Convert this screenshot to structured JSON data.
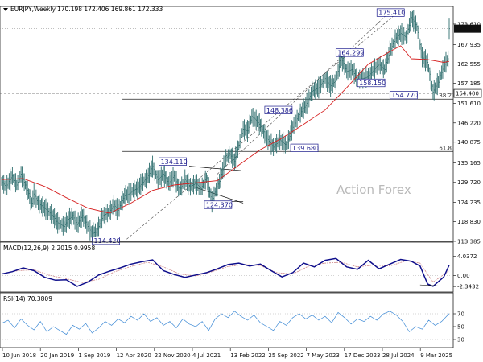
{
  "chart_data": [
    {
      "type": "candlestick",
      "header": {
        "symbol": "EURJPY,Weekly",
        "ohlc": "170.198 172.406 169.861 172.333"
      },
      "ylim": [
        113.385,
        178.5
      ],
      "y_ticks": [
        "173.610",
        "167.935",
        "162.555",
        "157.185",
        "151.610",
        "146.220",
        "140.875",
        "135.165",
        "129.720",
        "124.235",
        "118.830",
        "113.385"
      ],
      "x_ticks": [
        "10 Jun 2018",
        "20 Jan 2019",
        "1 Sep 2019",
        "12 Apr 2020",
        "22 Nov 2020",
        "4 Jul 2021",
        "13 Feb 2022",
        "25 Sep 2022",
        "7 May 2023",
        "17 Dec 2023",
        "28 Jul 2024",
        "9 Mar 2025"
      ],
      "current_price": {
        "value": 172.333,
        "label": "172.333"
      },
      "price_line": {
        "value": 154.4,
        "label": "154.400"
      },
      "price_series": {
        "time": [
          0,
          4,
          10,
          14,
          18,
          24,
          28,
          30,
          34,
          40,
          46,
          52,
          58,
          62,
          66,
          70,
          75,
          80,
          84,
          88,
          94,
          100,
          104,
          108,
          114,
          118,
          122,
          126,
          130,
          135,
          140,
          145,
          150,
          155,
          160,
          165,
          170,
          175,
          180,
          185,
          190,
          195,
          198,
          202,
          205,
          208,
          212,
          216,
          220,
          224,
          228,
          232,
          236,
          240,
          246,
          252,
          258,
          264,
          270,
          276,
          282,
          288,
          294,
          300,
          305,
          310,
          315,
          320,
          325,
          330,
          335,
          340,
          345,
          350,
          355,
          360,
          365,
          370,
          375,
          380,
          385,
          390,
          395,
          400,
          405,
          410,
          415
        ],
        "price": [
          130.0,
          128.5,
          131.5,
          129.0,
          132.0,
          127.5,
          124.0,
          126.5,
          124.0,
          122.5,
          121.0,
          118.5,
          117.5,
          119.5,
          120.5,
          118.0,
          120.5,
          117.5,
          115.5,
          116.0,
          120.5,
          121.5,
          123.5,
          122.0,
          126.0,
          126.5,
          127.5,
          128.0,
          129.5,
          131.0,
          134.1,
          130.5,
          132.0,
          129.5,
          131.5,
          127.5,
          130.5,
          128.5,
          129.5,
          128.0,
          131.0,
          124.4,
          127.0,
          130.0,
          133.0,
          136.5,
          137.5,
          135.5,
          140.0,
          144.5,
          144.0,
          148.0,
          147.0,
          145.5,
          142.0,
          139.5,
          141.5,
          140.0,
          145.0,
          148.5,
          151.0,
          155.0,
          156.0,
          158.5,
          156.5,
          158.0,
          164.3,
          160.5,
          161.0,
          158.2,
          158.5,
          159.0,
          161.0,
          162.5,
          161.0,
          166.0,
          169.5,
          171.0,
          170.0,
          175.41,
          173.0,
          164.5,
          163.0,
          154.77,
          157.5,
          162.0,
          164.5,
          163.0,
          165.5,
          162.0,
          163.0,
          164.0,
          161.5,
          160.5,
          163.0,
          166.0,
          172.333
        ]
      },
      "ma_series": {
        "time": [
          0,
          20,
          40,
          60,
          80,
          100,
          120,
          140,
          160,
          180,
          200,
          220,
          240,
          260,
          280,
          300,
          320,
          340,
          360,
          370,
          380,
          395,
          410,
          415
        ],
        "value": [
          130.5,
          130.8,
          128.6,
          125.5,
          122.6,
          121.2,
          124.0,
          127.5,
          129.0,
          129.6,
          130.2,
          134.5,
          138.8,
          142.0,
          145.8,
          149.8,
          156.0,
          162.5,
          166.0,
          167.6,
          164.0,
          163.8,
          163.0,
          163.3
        ]
      },
      "horizontal_levels": [
        {
          "value": 152.8,
          "label": "38.2"
        },
        {
          "value": 138.3,
          "label": "61.8"
        }
      ],
      "price_labels": [
        {
          "text": "175.410",
          "value": 175.41
        },
        {
          "text": "164.299",
          "value": 164.3
        },
        {
          "text": "158.150",
          "value": 158.15
        },
        {
          "text": "154.770",
          "value": 154.77
        },
        {
          "text": "148.386",
          "value": 148.386
        },
        {
          "text": "139.680",
          "value": 139.68
        },
        {
          "text": "134.110",
          "value": 134.11
        },
        {
          "text": "124.370",
          "value": 124.37
        },
        {
          "text": "114.420",
          "value": 114.42
        }
      ],
      "watermark": "Action Forex"
    },
    {
      "type": "line",
      "title": "MACD(12,26,9) 2.2015 0.9958",
      "ylim": [
        -3.0,
        4.5
      ],
      "y_ticks": [
        "4.0372",
        "0.00",
        "-2.3432"
      ],
      "series": [
        {
          "name": "MACD",
          "color": "#0f0f8c",
          "time": [
            0,
            10,
            20,
            30,
            40,
            50,
            60,
            70,
            80,
            90,
            100,
            110,
            120,
            130,
            140,
            150,
            160,
            170,
            180,
            190,
            200,
            210,
            220,
            230,
            240,
            250,
            260,
            270,
            280,
            290,
            300,
            310,
            320,
            330,
            340,
            350,
            360,
            370,
            380,
            388,
            395,
            400,
            410,
            415
          ],
          "value": [
            0.3,
            0.8,
            1.6,
            1.0,
            -0.4,
            -1.0,
            -0.9,
            -2.3,
            -1.4,
            0.1,
            0.9,
            1.6,
            2.4,
            2.9,
            3.3,
            1.0,
            0.2,
            -0.4,
            0.1,
            0.6,
            1.4,
            2.3,
            2.6,
            2.0,
            2.4,
            1.0,
            -0.3,
            0.6,
            2.6,
            1.8,
            3.2,
            3.6,
            1.8,
            1.3,
            3.2,
            1.4,
            2.4,
            3.4,
            3.0,
            2.0,
            -1.8,
            -2.3,
            -0.3,
            2.2
          ]
        },
        {
          "name": "Signal",
          "color": "#cf8a8a",
          "time": [
            0,
            15,
            30,
            45,
            60,
            75,
            90,
            105,
            120,
            135,
            150,
            165,
            180,
            195,
            210,
            225,
            240,
            255,
            270,
            285,
            300,
            315,
            330,
            345,
            360,
            375,
            388,
            400,
            415
          ],
          "value": [
            0.3,
            1.0,
            1.2,
            0.0,
            -0.7,
            -1.5,
            -0.8,
            0.8,
            1.9,
            2.8,
            1.8,
            0.3,
            -0.1,
            0.8,
            1.9,
            2.3,
            2.1,
            0.6,
            0.3,
            2.0,
            2.6,
            2.8,
            1.8,
            2.2,
            2.0,
            3.1,
            2.6,
            -1.4,
            1.0
          ]
        }
      ]
    },
    {
      "type": "line",
      "title": "RSI(14) 70.3809",
      "ylim": [
        20,
        85
      ],
      "y_ticks": [
        "70",
        "50",
        "30"
      ],
      "series": [
        {
          "name": "RSI",
          "color": "#3f8bd6",
          "time": [
            0,
            6,
            12,
            18,
            24,
            30,
            36,
            42,
            48,
            54,
            60,
            66,
            72,
            78,
            84,
            90,
            96,
            102,
            108,
            114,
            120,
            126,
            132,
            138,
            144,
            150,
            156,
            162,
            168,
            174,
            180,
            186,
            192,
            198,
            204,
            210,
            216,
            222,
            228,
            234,
            240,
            246,
            252,
            258,
            264,
            270,
            276,
            282,
            288,
            294,
            300,
            306,
            312,
            318,
            324,
            330,
            336,
            342,
            348,
            354,
            360,
            366,
            372,
            378,
            384,
            390,
            396,
            402,
            408,
            415
          ],
          "value": [
            55,
            60,
            48,
            62,
            52,
            45,
            58,
            42,
            50,
            44,
            38,
            52,
            46,
            55,
            40,
            48,
            58,
            52,
            62,
            56,
            66,
            60,
            70,
            58,
            64,
            52,
            58,
            48,
            62,
            54,
            50,
            58,
            44,
            62,
            70,
            64,
            74,
            66,
            60,
            68,
            56,
            50,
            44,
            58,
            52,
            64,
            70,
            62,
            68,
            60,
            66,
            56,
            72,
            64,
            54,
            62,
            58,
            66,
            60,
            70,
            74,
            68,
            58,
            42,
            50,
            46,
            60,
            52,
            58,
            70.4
          ]
        }
      ]
    }
  ]
}
